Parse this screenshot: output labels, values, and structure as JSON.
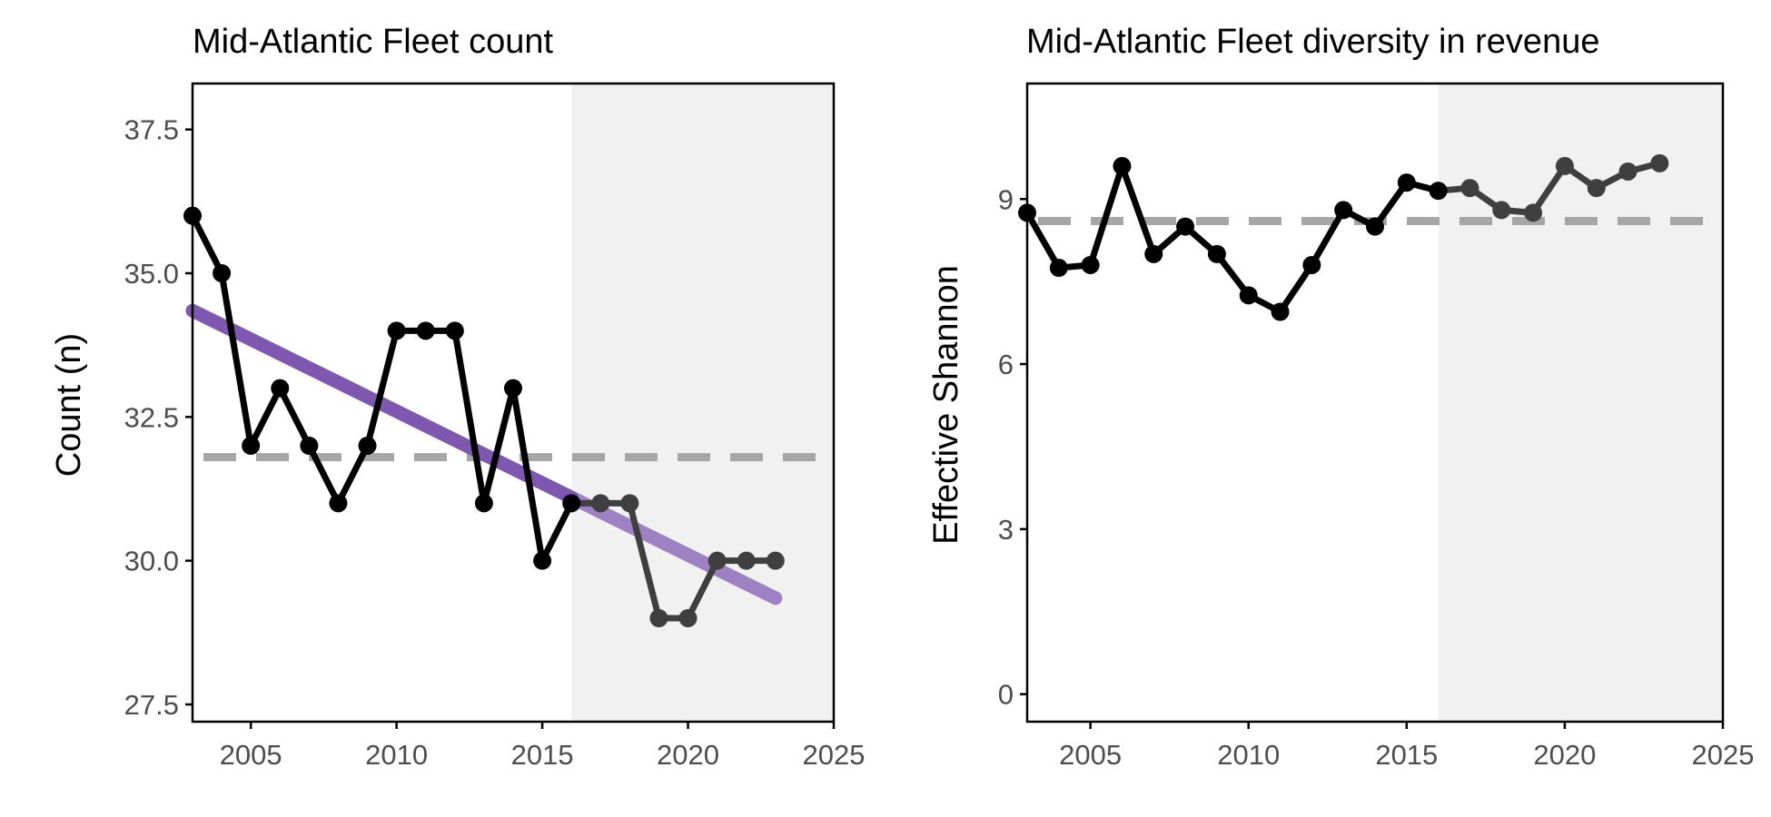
{
  "colors": {
    "series": "#000000",
    "series_recent": "#3f3f3f",
    "mean_line": "#a6a6a6",
    "trend": "#7e57b0",
    "shade": "#f1f1f1",
    "axis": "#000000",
    "tick_text": "#4d4d4d"
  },
  "chart_data": [
    {
      "type": "line",
      "title": "Mid-Atlantic Fleet count",
      "xlabel": "",
      "ylabel": "Count (n)",
      "xlim": [
        2003,
        2025
      ],
      "ylim": [
        27.2,
        38.3
      ],
      "xticks": [
        2005,
        2010,
        2015,
        2020,
        2025
      ],
      "yticks": [
        27.5,
        30.0,
        32.5,
        35.0,
        37.5
      ],
      "ytick_labels": [
        "27.5",
        "30.0",
        "32.5",
        "35.0",
        "37.5"
      ],
      "grid": false,
      "shaded_period": [
        2016,
        2025
      ],
      "mean": 31.8,
      "trend": {
        "x": [
          2003,
          2023
        ],
        "y": [
          34.35,
          29.35
        ]
      },
      "x": [
        2003,
        2004,
        2005,
        2006,
        2007,
        2008,
        2009,
        2010,
        2011,
        2012,
        2013,
        2014,
        2015,
        2016,
        2017,
        2018,
        2019,
        2020,
        2021,
        2022,
        2023
      ],
      "y": [
        36,
        35,
        32,
        33,
        32,
        31,
        32,
        34,
        34,
        34,
        31,
        33,
        30,
        31,
        31,
        31,
        29,
        29,
        30,
        30,
        30
      ]
    },
    {
      "type": "line",
      "title": "Mid-Atlantic Fleet diversity in revenue",
      "xlabel": "",
      "ylabel": "Effective Shannon",
      "xlim": [
        2003,
        2025
      ],
      "ylim": [
        -0.5,
        11.1
      ],
      "xticks": [
        2005,
        2010,
        2015,
        2020,
        2025
      ],
      "yticks": [
        0,
        3,
        6,
        9
      ],
      "ytick_labels": [
        "0",
        "3",
        "6",
        "9"
      ],
      "grid": false,
      "shaded_period": [
        2016,
        2025
      ],
      "mean": 8.6,
      "x": [
        2003,
        2004,
        2005,
        2006,
        2007,
        2008,
        2009,
        2010,
        2011,
        2012,
        2013,
        2014,
        2015,
        2016,
        2017,
        2018,
        2019,
        2020,
        2021,
        2022,
        2023
      ],
      "y": [
        8.75,
        7.75,
        7.8,
        9.6,
        8.0,
        8.5,
        8.0,
        7.25,
        6.95,
        7.8,
        8.8,
        8.5,
        9.3,
        9.15,
        9.2,
        8.8,
        8.75,
        9.6,
        9.2,
        9.5,
        9.65
      ]
    }
  ]
}
